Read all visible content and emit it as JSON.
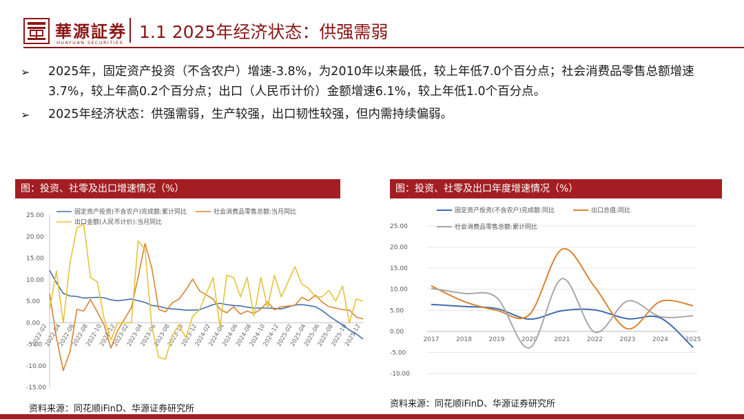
{
  "header": {
    "logo_cn": "華源証券",
    "logo_en": "HUAYUAN SECURITIES",
    "title": "1.1 2025年经济状态：供强需弱"
  },
  "bullets": [
    "2025年，固定资产投资（不含农户）增速-3.8%，为2010年以来最低，较上年低7.0个百分点；社会消费品零售总额增速3.7%，较上年高0.2个百分点；出口（人民币计价）金额增速6.1%，较上年低1.0个百分点。",
    "2025年经济状态：供强需弱，生产较强，出口韧性较强，但内需持续偏弱。"
  ],
  "bullet_marker": "➢",
  "left_panel": {
    "title": "图：投资、社零及出口增速情况（%）",
    "source": "资料来源：同花顺iFinD、华源证券研究所"
  },
  "right_panel": {
    "title": "图：投资、社零及出口年度增速情况（%）",
    "source": "资料来源：同花顺iFinD、华源证券研究所"
  },
  "chart_data": [
    {
      "type": "line",
      "title": "图：投资、社零及出口增速情况（%）",
      "ylim": [
        -15,
        25
      ],
      "yticks": [
        "25.00",
        "20.00",
        "15.00",
        "10.00",
        "5.00",
        "0.00",
        "-5.00",
        "-10.00",
        "-15.00"
      ],
      "ytick_values": [
        25,
        20,
        15,
        10,
        5,
        0,
        -5,
        -10,
        -15
      ],
      "x": [
        "2022-02",
        "2022-03",
        "2022-04",
        "2022-05",
        "2022-06",
        "2022-07",
        "2022-08",
        "2022-09",
        "2022-10",
        "2022-11",
        "2022-12",
        "2023-01",
        "2023-02",
        "2023-03",
        "2023-04",
        "2023-05",
        "2023-06",
        "2023-07",
        "2023-08",
        "2023-09",
        "2023-10",
        "2023-11",
        "2023-12",
        "2024-01",
        "2024-02",
        "2024-03",
        "2024-04",
        "2024-05",
        "2024-06",
        "2024-07",
        "2024-08",
        "2024-09",
        "2024-10",
        "2024-11",
        "2024-12",
        "2025-01",
        "2025-02",
        "2025-03",
        "2025-04",
        "2025-05",
        "2025-06",
        "2025-07",
        "2025-08",
        "2025-09",
        "2025-10",
        "2025-11",
        "2025-12"
      ],
      "xticks": [
        "2022-02",
        "2022-04",
        "2022-06",
        "2022-08",
        "2022-10",
        "2022-12",
        "2023-02",
        "2023-04",
        "2023-06",
        "2023-08",
        "2023-10",
        "2023-12",
        "2024-02",
        "2024-04",
        "2024-06",
        "2024-08",
        "2024-10",
        "2024-12",
        "2025-02",
        "2025-04",
        "2025-06",
        "2025-08",
        "2025-10",
        "2025-12"
      ],
      "legend_placement": "top",
      "series": [
        {
          "name": "固定资产投资(不含农户)完成额:累计同比",
          "color": "#3f6bb0",
          "values": [
            12.2,
            9.3,
            6.8,
            6.2,
            6.1,
            5.7,
            5.8,
            5.9,
            5.8,
            5.3,
            5.1,
            null,
            5.5,
            5.1,
            4.7,
            4.0,
            3.8,
            3.4,
            3.2,
            3.1,
            2.9,
            2.9,
            3.0,
            null,
            4.2,
            4.5,
            4.2,
            4.0,
            3.9,
            3.6,
            3.4,
            3.4,
            3.4,
            3.3,
            3.2,
            null,
            4.1,
            4.2,
            4.0,
            3.7,
            2.8,
            1.6,
            0.5,
            -0.5,
            -1.7,
            -2.6,
            -3.8
          ]
        },
        {
          "name": "社会消费品零售总额:当月同比",
          "color": "#d9822b",
          "values": [
            6.7,
            -3.5,
            -11.1,
            -6.7,
            3.1,
            2.7,
            5.4,
            2.5,
            -0.5,
            -5.9,
            -1.8,
            null,
            3.5,
            10.6,
            18.4,
            12.7,
            3.1,
            2.5,
            4.6,
            5.5,
            7.6,
            10.1,
            7.4,
            null,
            5.5,
            3.1,
            2.3,
            3.7,
            2.0,
            2.7,
            2.1,
            3.2,
            4.8,
            3.0,
            3.7,
            null,
            4.0,
            5.9,
            5.1,
            6.4,
            4.8,
            3.7,
            3.4,
            3.0,
            2.9,
            1.3,
            0.9
          ]
        },
        {
          "name": "出口金额(人民币计价):当月同比",
          "color": "#e5c23a",
          "values": [
            3.0,
            12.0,
            0.0,
            14.0,
            22.0,
            23.0,
            10.5,
            9.5,
            1.0,
            -4.0,
            0.0,
            null,
            0.0,
            19.0,
            17.0,
            -1.0,
            -8.0,
            -8.5,
            -3.0,
            -0.5,
            -3.5,
            1.5,
            3.0,
            null,
            10.5,
            -1.0,
            11.0,
            10.5,
            6.0,
            10.5,
            1.5,
            10.5,
            3.5,
            11.0,
            6.0,
            null,
            13.0,
            9.0,
            8.0,
            6.0,
            6.0,
            7.5,
            5.0,
            8.5,
            0.0,
            5.5,
            5.0
          ]
        }
      ]
    },
    {
      "type": "line",
      "title": "图：投资、社零及出口年度增速情况（%）",
      "ylim": [
        -10,
        25
      ],
      "yticks": [
        "25.00",
        "20.00",
        "15.00",
        "10.00",
        "5.00",
        "0.00",
        "-5.00",
        "-10.00"
      ],
      "ytick_values": [
        25,
        20,
        15,
        10,
        5,
        0,
        -5,
        -10
      ],
      "x": [
        "2017",
        "2018",
        "2019",
        "2020",
        "2021",
        "2022",
        "2023",
        "2024",
        "2025"
      ],
      "legend_placement": "top",
      "series": [
        {
          "name": "固定资产投资(不含农户)完成额:同比",
          "color": "#3f6bb0",
          "values": [
            6.4,
            5.9,
            5.4,
            2.9,
            4.9,
            5.1,
            3.0,
            3.2,
            -3.8
          ]
        },
        {
          "name": "出口总值:同比",
          "color": "#d9822b",
          "values": [
            10.8,
            7.1,
            5.0,
            4.0,
            19.5,
            10.5,
            0.6,
            7.1,
            6.1
          ]
        },
        {
          "name": "社会消费品零售总额:累计同比",
          "color": "#a6a6a6",
          "values": [
            10.2,
            9.0,
            8.0,
            -3.9,
            12.5,
            -0.2,
            7.2,
            3.5,
            3.7
          ]
        }
      ]
    }
  ]
}
